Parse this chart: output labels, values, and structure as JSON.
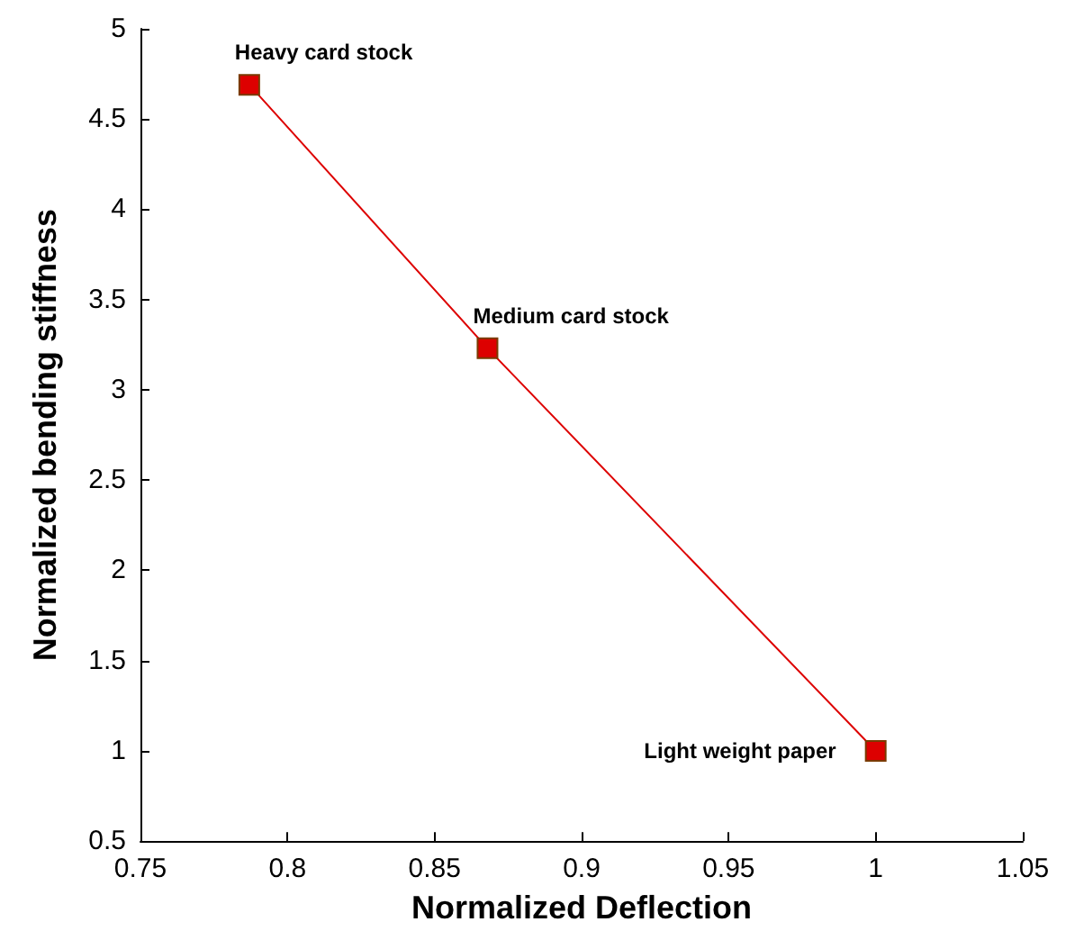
{
  "chart_data": {
    "type": "line",
    "xlabel": "Normalized Deflection",
    "ylabel": "Normalized bending stiffness",
    "x": [
      0.787,
      0.868,
      1.0
    ],
    "series": [
      {
        "color": "#dd0000",
        "values": [
          4.69,
          3.23,
          1.0
        ]
      }
    ],
    "marker": "square",
    "line_style": "solid",
    "grid": false,
    "xlim": [
      0.75,
      1.05
    ],
    "xticks": [
      0.75,
      0.8,
      0.85,
      0.9,
      0.95,
      1,
      1.05
    ],
    "ylim": [
      0.5,
      5
    ],
    "yticks": [
      0.5,
      1,
      1.5,
      2,
      2.5,
      3,
      3.5,
      4,
      4.5,
      5
    ],
    "annotations": [
      {
        "text": "Heavy card stock",
        "x": 0.787,
        "y": 4.69
      },
      {
        "text": "Medium card stock",
        "x": 0.868,
        "y": 3.23
      },
      {
        "text": "Light weight paper",
        "x": 1.0,
        "y": 1.0
      }
    ]
  }
}
